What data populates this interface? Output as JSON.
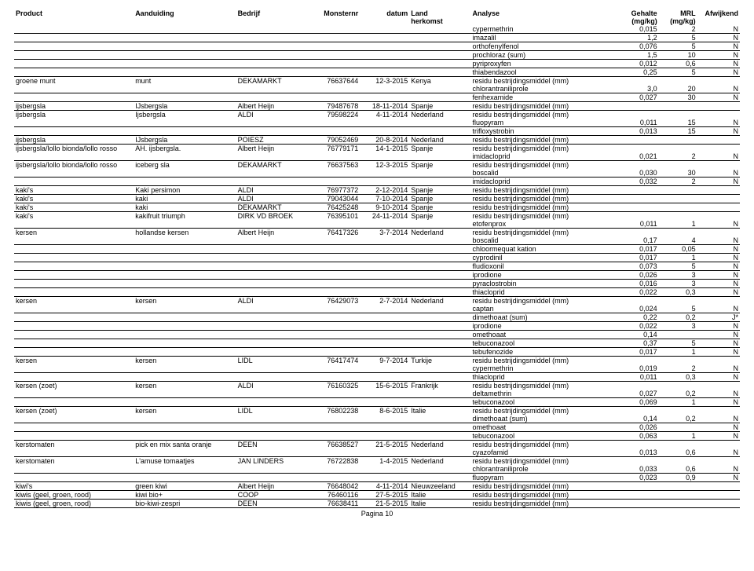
{
  "headers": {
    "product": "Product",
    "aanduiding": "Aanduiding",
    "bedrijf": "Bedrijf",
    "monsternr": "Monsternr",
    "datum": "datum",
    "land": "Land",
    "land2": "herkomst",
    "analyse": "Analyse",
    "gehalte": "Gehalte",
    "gehalte2": "(mg/kg)",
    "mrl": "MRL",
    "mrl2": "(mg/kg)",
    "afwijkend": "Afwijkend"
  },
  "footer": "Pagina 10",
  "rows": [
    {
      "analyse": "cypermethrin",
      "gehalte": "0,015",
      "mrl": "2",
      "afw": "N",
      "u": 1
    },
    {
      "analyse": "imazalil",
      "gehalte": "1,2",
      "mrl": "5",
      "afw": "N",
      "u": 1
    },
    {
      "analyse": "orthofenylfenol",
      "gehalte": "0,076",
      "mrl": "5",
      "afw": "N",
      "u": 1
    },
    {
      "analyse": "prochloraz (sum)",
      "gehalte": "1,5",
      "mrl": "10",
      "afw": "N",
      "u": 1
    },
    {
      "analyse": "pyriproxyfen",
      "gehalte": "0,012",
      "mrl": "0,6",
      "afw": "N",
      "u": 1
    },
    {
      "analyse": "thiabendazool",
      "gehalte": "0,25",
      "mrl": "5",
      "afw": "N",
      "u": 1
    },
    {
      "product": "groene munt",
      "aand": "munt",
      "bedrijf": "DEKAMARKT",
      "monster": "76637644",
      "datum": "12-3-2015",
      "land": "Kenya",
      "analyse": "residu bestrijdingsmiddel (mm)"
    },
    {
      "analyse": "chlorantraniliprole",
      "gehalte": "3,0",
      "mrl": "20",
      "afw": "N",
      "u": 1
    },
    {
      "analyse": "fenhexamide",
      "gehalte": "0,027",
      "mrl": "30",
      "afw": "N",
      "u": 1
    },
    {
      "product": "ijsbergsla",
      "aand": "IJsbergsla",
      "bedrijf": "Albert Heijn",
      "monster": "79487678",
      "datum": "18-11-2014",
      "land": "Spanje",
      "analyse": "residu bestrijdingsmiddel (mm)",
      "u": 1
    },
    {
      "product": "ijsbergsla",
      "aand": "Ijsbergsla",
      "bedrijf": "ALDI",
      "monster": "79598224",
      "datum": "4-11-2014",
      "land": "Nederland",
      "analyse": "residu bestrijdingsmiddel (mm)"
    },
    {
      "analyse": "fluopyram",
      "gehalte": "0,011",
      "mrl": "15",
      "afw": "N",
      "u": 1
    },
    {
      "analyse": "trifloxystrobin",
      "gehalte": "0,013",
      "mrl": "15",
      "afw": "N",
      "u": 1
    },
    {
      "product": "ijsbergsla",
      "aand": "IJsbergsla",
      "bedrijf": "POIESZ",
      "monster": "79052469",
      "datum": "20-8-2014",
      "land": "Nederland",
      "analyse": "residu bestrijdingsmiddel (mm)",
      "u": 1
    },
    {
      "product": "ijsbergsla/lollo bionda/lollo rosso",
      "aand": "AH. ijsbergsla.",
      "bedrijf": "Albert Heijn",
      "monster": "76779171",
      "datum": "14-1-2015",
      "land": "Spanje",
      "analyse": "residu bestrijdingsmiddel (mm)"
    },
    {
      "analyse": "imidacloprid",
      "gehalte": "0,021",
      "mrl": "2",
      "afw": "N",
      "u": 1
    },
    {
      "product": "ijsbergsla/lollo bionda/lollo rosso",
      "aand": "iceberg sla",
      "bedrijf": "DEKAMARKT",
      "monster": "76637563",
      "datum": "12-3-2015",
      "land": "Spanje",
      "analyse": "residu bestrijdingsmiddel (mm)"
    },
    {
      "analyse": "boscalid",
      "gehalte": "0,030",
      "mrl": "30",
      "afw": "N",
      "u": 1
    },
    {
      "analyse": "imidacloprid",
      "gehalte": "0,032",
      "mrl": "2",
      "afw": "N",
      "u": 1
    },
    {
      "product": "kaki's",
      "aand": "Kaki persimon",
      "bedrijf": "ALDI",
      "monster": "76977372",
      "datum": "2-12-2014",
      "land": "Spanje",
      "analyse": "residu bestrijdingsmiddel (mm)",
      "u": 1
    },
    {
      "product": "kaki's",
      "aand": "kaki",
      "bedrijf": "ALDI",
      "monster": "79043044",
      "datum": "7-10-2014",
      "land": "Spanje",
      "analyse": "residu bestrijdingsmiddel (mm)",
      "u": 1
    },
    {
      "product": "kaki's",
      "aand": "kaki",
      "bedrijf": "DEKAMARKT",
      "monster": "76425248",
      "datum": "9-10-2014",
      "land": "Spanje",
      "analyse": "residu bestrijdingsmiddel (mm)",
      "u": 1
    },
    {
      "product": "kaki's",
      "aand": "kakifruit triumph",
      "bedrijf": "DIRK VD BROEK",
      "monster": "76395101",
      "datum": "24-11-2014",
      "land": "Spanje",
      "analyse": "residu bestrijdingsmiddel (mm)"
    },
    {
      "analyse": "etofenprox",
      "gehalte": "0,011",
      "mrl": "1",
      "afw": "N",
      "u": 1
    },
    {
      "product": "kersen",
      "aand": "hollandse kersen",
      "bedrijf": "Albert Heijn",
      "monster": "76417326",
      "datum": "3-7-2014",
      "land": "Nederland",
      "analyse": "residu bestrijdingsmiddel (mm)"
    },
    {
      "analyse": "boscalid",
      "gehalte": "0,17",
      "mrl": "4",
      "afw": "N",
      "u": 1
    },
    {
      "analyse": "chloormequat kation",
      "gehalte": "0,017",
      "mrl": "0,05",
      "afw": "N",
      "u": 1
    },
    {
      "analyse": "cyprodinil",
      "gehalte": "0,017",
      "mrl": "1",
      "afw": "N",
      "u": 1
    },
    {
      "analyse": "fludioxonil",
      "gehalte": "0,073",
      "mrl": "5",
      "afw": "N",
      "u": 1
    },
    {
      "analyse": "iprodione",
      "gehalte": "0,026",
      "mrl": "3",
      "afw": "N",
      "u": 1
    },
    {
      "analyse": "pyraclostrobin",
      "gehalte": "0,016",
      "mrl": "3",
      "afw": "N",
      "u": 1
    },
    {
      "analyse": "thiacloprid",
      "gehalte": "0,022",
      "mrl": "0,3",
      "afw": "N",
      "u": 1
    },
    {
      "product": "kersen",
      "aand": "kersen",
      "bedrijf": "ALDI",
      "monster": "76429073",
      "datum": "2-7-2014",
      "land": "Nederland",
      "analyse": "residu bestrijdingsmiddel (mm)"
    },
    {
      "analyse": "captan",
      "gehalte": "0,024",
      "mrl": "5",
      "afw": "N",
      "u": 1
    },
    {
      "analyse": "dimethoaat (sum)",
      "gehalte": "0,22",
      "mrl": "0,2",
      "afw": "J*",
      "u": 1
    },
    {
      "analyse": "iprodione",
      "gehalte": "0,022",
      "mrl": "3",
      "afw": "N",
      "u": 1
    },
    {
      "analyse": "omethoaat",
      "gehalte": "0,14",
      "mrl": "",
      "afw": "N",
      "u": 1
    },
    {
      "analyse": "tebuconazool",
      "gehalte": "0,37",
      "mrl": "5",
      "afw": "N",
      "u": 1
    },
    {
      "analyse": "tebufenozide",
      "gehalte": "0,017",
      "mrl": "1",
      "afw": "N",
      "u": 1
    },
    {
      "product": "kersen",
      "aand": "kersen",
      "bedrijf": "LIDL",
      "monster": "76417474",
      "datum": "9-7-2014",
      "land": "Turkije",
      "analyse": "residu bestrijdingsmiddel (mm)"
    },
    {
      "analyse": "cypermethrin",
      "gehalte": "0,019",
      "mrl": "2",
      "afw": "N",
      "u": 1
    },
    {
      "analyse": "thiacloprid",
      "gehalte": "0,011",
      "mrl": "0,3",
      "afw": "N",
      "u": 1
    },
    {
      "product": "kersen (zoet)",
      "aand": "kersen",
      "bedrijf": "ALDI",
      "monster": "76160325",
      "datum": "15-6-2015",
      "land": "Frankrijk",
      "analyse": "residu bestrijdingsmiddel (mm)"
    },
    {
      "analyse": "deltamethrin",
      "gehalte": "0,027",
      "mrl": "0,2",
      "afw": "N",
      "u": 1
    },
    {
      "analyse": "tebuconazool",
      "gehalte": "0,069",
      "mrl": "1",
      "afw": "N",
      "u": 1
    },
    {
      "product": "kersen (zoet)",
      "aand": "kersen",
      "bedrijf": "LIDL",
      "monster": "76802238",
      "datum": "8-6-2015",
      "land": "Italie",
      "analyse": "residu bestrijdingsmiddel (mm)"
    },
    {
      "analyse": "dimethoaat (sum)",
      "gehalte": "0,14",
      "mrl": "0,2",
      "afw": "N",
      "u": 1
    },
    {
      "analyse": "omethoaat",
      "gehalte": "0,026",
      "mrl": "",
      "afw": "N",
      "u": 1
    },
    {
      "analyse": "tebuconazool",
      "gehalte": "0,063",
      "mrl": "1",
      "afw": "N",
      "u": 1
    },
    {
      "product": "kerstomaten",
      "aand": "pick en mix santa oranje",
      "bedrijf": "DEEN",
      "monster": "76638527",
      "datum": "21-5-2015",
      "land": "Nederland",
      "analyse": "residu bestrijdingsmiddel (mm)"
    },
    {
      "analyse": "cyazofamid",
      "gehalte": "0,013",
      "mrl": "0,6",
      "afw": "N",
      "u": 1
    },
    {
      "product": "kerstomaten",
      "aand": "L'amuse tomaatjes",
      "bedrijf": "JAN LINDERS",
      "monster": "76722838",
      "datum": "1-4-2015",
      "land": "Nederland",
      "analyse": "residu bestrijdingsmiddel (mm)"
    },
    {
      "analyse": "chlorantraniliprole",
      "gehalte": "0,033",
      "mrl": "0,6",
      "afw": "N",
      "u": 1
    },
    {
      "analyse": "fluopyram",
      "gehalte": "0,023",
      "mrl": "0,9",
      "afw": "N",
      "u": 1
    },
    {
      "product": "kiwi's",
      "aand": "green kiwi",
      "bedrijf": "Albert Heijn",
      "monster": "76648042",
      "datum": "4-11-2014",
      "land": "Nieuwzeeland",
      "analyse": "residu bestrijdingsmiddel (mm)",
      "u": 1
    },
    {
      "product": "kiwis (geel, groen, rood)",
      "aand": "kiwi bio+",
      "bedrijf": "COOP",
      "monster": "76460116",
      "datum": "27-5-2015",
      "land": "Italie",
      "analyse": "residu bestrijdingsmiddel (mm)",
      "u": 1
    },
    {
      "product": "kiwis (geel, groen, rood)",
      "aand": "bio-kiwi-zespri",
      "bedrijf": "DEEN",
      "monster": "76638411",
      "datum": "21-5-2015",
      "land": "Italie",
      "analyse": "residu bestrijdingsmiddel (mm)",
      "u": 1
    }
  ]
}
